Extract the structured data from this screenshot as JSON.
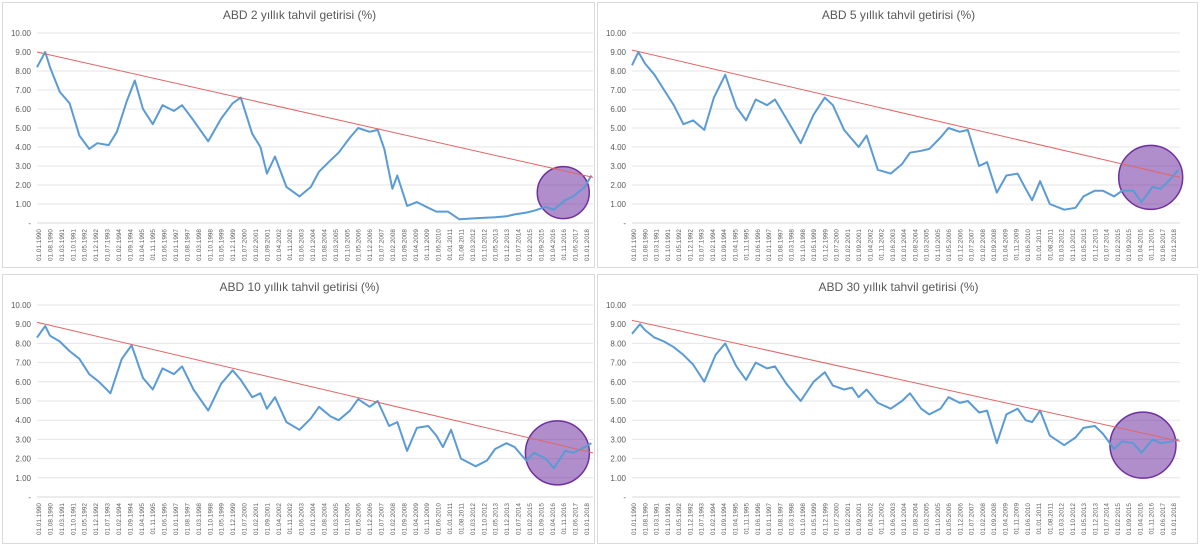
{
  "chart_data": [
    {
      "type": "line",
      "title": "ABD 2 yıllık tahvil getirisi (%)",
      "ylim": [
        0,
        10
      ],
      "yticks": [
        "-",
        "1.00",
        "2.00",
        "3.00",
        "4.00",
        "5.00",
        "6.00",
        "7.00",
        "8.00",
        "9.00",
        "10.00"
      ],
      "xticks": [
        "01.01.1990",
        "01.08.1990",
        "01.03.1991",
        "01.10.1991",
        "01.05.1992",
        "01.12.1992",
        "01.07.1993",
        "01.02.1994",
        "01.09.1994",
        "01.04.1995",
        "01.11.1995",
        "01.06.1996",
        "01.01.1997",
        "01.08.1997",
        "01.03.1998",
        "01.10.1998",
        "01.05.1999",
        "01.12.1999",
        "01.07.2000",
        "01.02.2001",
        "01.09.2001",
        "01.04.2002",
        "01.11.2002",
        "01.06.2003",
        "01.01.2004",
        "01.08.2004",
        "01.03.2005",
        "01.10.2005",
        "01.05.2006",
        "01.12.2006",
        "01.07.2007",
        "01.02.2008",
        "01.09.2008",
        "01.04.2009",
        "01.11.2009",
        "01.06.2010",
        "01.01.2011",
        "01.08.2011",
        "01.03.2012",
        "01.10.2012",
        "01.05.2013",
        "01.12.2013",
        "01.07.2014",
        "01.02.2015",
        "01.09.2015",
        "01.04.2016",
        "01.11.2016",
        "01.06.2017",
        "01.01.2018"
      ],
      "series": [
        {
          "values_x": [
            "1990-01",
            "1990-06",
            "1990-09",
            "1991-03",
            "1991-09",
            "1992-03",
            "1992-09",
            "1993-02",
            "1993-09",
            "1994-02",
            "1994-08",
            "1995-01",
            "1995-06",
            "1995-12",
            "1996-06",
            "1997-01",
            "1997-06",
            "1998-01",
            "1998-10",
            "1999-06",
            "2000-01",
            "2000-06",
            "2001-01",
            "2001-06",
            "2001-10",
            "2002-03",
            "2002-10",
            "2003-06",
            "2004-01",
            "2004-06",
            "2005-01",
            "2005-06",
            "2006-01",
            "2006-06",
            "2007-01",
            "2007-06",
            "2007-10",
            "2008-03",
            "2008-06",
            "2008-12",
            "2009-06",
            "2010-01",
            "2010-06",
            "2011-01",
            "2011-08",
            "2012-06",
            "2013-06",
            "2014-01",
            "2014-06",
            "2015-01",
            "2015-06",
            "2016-01",
            "2016-06",
            "2017-01",
            "2017-06",
            "2018-01",
            "2018-05"
          ],
          "values": [
            8.2,
            9.0,
            8.2,
            6.9,
            6.3,
            4.6,
            3.9,
            4.2,
            4.1,
            4.8,
            6.4,
            7.5,
            6.0,
            5.2,
            6.2,
            5.9,
            6.2,
            5.4,
            4.3,
            5.5,
            6.3,
            6.6,
            4.7,
            4.0,
            2.6,
            3.5,
            1.9,
            1.4,
            1.9,
            2.7,
            3.3,
            3.7,
            4.5,
            5.0,
            4.8,
            4.9,
            3.9,
            1.8,
            2.5,
            0.9,
            1.1,
            0.8,
            0.6,
            0.6,
            0.2,
            0.25,
            0.3,
            0.35,
            0.45,
            0.55,
            0.65,
            0.85,
            0.7,
            1.2,
            1.4,
            1.9,
            2.5
          ]
        },
        {
          "trend_start": 9.0,
          "trend_end": 2.4
        }
      ]
    },
    {
      "type": "line",
      "title": "ABD 5 yıllık tahvil getirisi (%)",
      "ylim": [
        0,
        10
      ],
      "yticks": [
        "-",
        "1.00",
        "2.00",
        "3.00",
        "4.00",
        "5.00",
        "6.00",
        "7.00",
        "8.00",
        "9.00",
        "10.00"
      ],
      "xticks": [
        "01.01.1990",
        "01.08.1990",
        "01.03.1991",
        "01.10.1991",
        "01.05.1992",
        "01.12.1992",
        "01.07.1993",
        "01.02.1994",
        "01.09.1994",
        "01.04.1995",
        "01.11.1995",
        "01.06.1996",
        "01.01.1997",
        "01.08.1997",
        "01.03.1998",
        "01.10.1998",
        "01.05.1999",
        "01.12.1999",
        "01.07.2000",
        "01.02.2001",
        "01.09.2001",
        "01.04.2002",
        "01.11.2002",
        "01.06.2003",
        "01.01.2004",
        "01.08.2004",
        "01.03.2005",
        "01.10.2005",
        "01.05.2006",
        "01.12.2006",
        "01.07.2007",
        "01.02.2008",
        "01.09.2008",
        "01.04.2009",
        "01.11.2009",
        "01.06.2010",
        "01.01.2011",
        "01.08.2011",
        "01.03.2012",
        "01.10.2012",
        "01.05.2013",
        "01.12.2013",
        "01.07.2014",
        "01.02.2015",
        "01.09.2015",
        "01.04.2016",
        "01.11.2016",
        "01.06.2017",
        "01.01.2018"
      ],
      "series": [
        {
          "values_x": [
            "1990-01",
            "1990-05",
            "1990-09",
            "1991-03",
            "1991-09",
            "1992-03",
            "1992-09",
            "1993-03",
            "1993-10",
            "1994-04",
            "1994-11",
            "1995-06",
            "1995-12",
            "1996-06",
            "1997-01",
            "1997-06",
            "1998-01",
            "1998-10",
            "1999-06",
            "2000-01",
            "2000-06",
            "2001-01",
            "2001-10",
            "2002-03",
            "2002-10",
            "2003-06",
            "2004-01",
            "2004-06",
            "2005-01",
            "2005-06",
            "2006-01",
            "2006-06",
            "2007-01",
            "2007-06",
            "2008-01",
            "2008-06",
            "2008-12",
            "2009-06",
            "2010-01",
            "2010-06",
            "2010-10",
            "2011-03",
            "2011-09",
            "2012-06",
            "2013-01",
            "2013-06",
            "2014-01",
            "2014-06",
            "2015-01",
            "2015-06",
            "2016-01",
            "2016-06",
            "2017-01",
            "2017-06",
            "2018-01",
            "2018-05"
          ],
          "values": [
            8.3,
            9.0,
            8.4,
            7.8,
            7.0,
            6.2,
            5.2,
            5.4,
            4.9,
            6.6,
            7.8,
            6.1,
            5.4,
            6.5,
            6.2,
            6.5,
            5.5,
            4.2,
            5.7,
            6.6,
            6.2,
            4.9,
            4.0,
            4.6,
            2.8,
            2.6,
            3.1,
            3.7,
            3.8,
            3.9,
            4.5,
            5.0,
            4.8,
            4.9,
            3.0,
            3.2,
            1.6,
            2.5,
            2.6,
            1.8,
            1.2,
            2.2,
            1.0,
            0.7,
            0.8,
            1.4,
            1.7,
            1.7,
            1.4,
            1.7,
            1.7,
            1.1,
            1.9,
            1.8,
            2.4,
            2.8
          ]
        },
        {
          "trend_start": 9.1,
          "trend_end": 2.4
        }
      ]
    },
    {
      "type": "line",
      "title": "ABD 10 yıllık tahvil getirisi (%)",
      "ylim": [
        0,
        10
      ],
      "yticks": [
        "-",
        "1.00",
        "2.00",
        "3.00",
        "4.00",
        "5.00",
        "6.00",
        "7.00",
        "8.00",
        "9.00",
        "10.00"
      ],
      "xticks": [
        "01.01.1990",
        "01.08.1990",
        "01.03.1991",
        "01.10.1991",
        "01.05.1992",
        "01.12.1992",
        "01.07.1993",
        "01.02.1994",
        "01.09.1994",
        "01.04.1995",
        "01.11.1995",
        "01.06.1996",
        "01.01.1997",
        "01.08.1997",
        "01.03.1998",
        "01.10.1998",
        "01.05.1999",
        "01.12.1999",
        "01.07.2000",
        "01.02.2001",
        "01.09.2001",
        "01.04.2002",
        "01.11.2002",
        "01.06.2003",
        "01.01.2004",
        "01.08.2004",
        "01.03.2005",
        "01.10.2005",
        "01.05.2006",
        "01.12.2006",
        "01.07.2007",
        "01.02.2008",
        "01.09.2008",
        "01.04.2009",
        "01.11.2009",
        "01.06.2010",
        "01.01.2011",
        "01.08.2011",
        "01.03.2012",
        "01.10.2012",
        "01.05.2013",
        "01.12.2013",
        "01.07.2014",
        "01.02.2015",
        "01.09.2015",
        "01.04.2016",
        "01.11.2016",
        "01.06.2017",
        "01.01.2018"
      ],
      "series": [
        {
          "values_x": [
            "1990-01",
            "1990-06",
            "1990-09",
            "1991-03",
            "1991-09",
            "1992-03",
            "1992-09",
            "1993-03",
            "1993-10",
            "1994-05",
            "1994-11",
            "1995-06",
            "1995-12",
            "1996-06",
            "1997-01",
            "1997-06",
            "1998-01",
            "1998-10",
            "1999-06",
            "2000-01",
            "2000-06",
            "2001-01",
            "2001-06",
            "2001-10",
            "2002-03",
            "2002-10",
            "2003-06",
            "2004-01",
            "2004-06",
            "2005-01",
            "2005-06",
            "2006-01",
            "2006-06",
            "2007-01",
            "2007-06",
            "2008-01",
            "2008-06",
            "2008-12",
            "2009-06",
            "2010-01",
            "2010-06",
            "2010-10",
            "2011-03",
            "2011-09",
            "2012-06",
            "2013-01",
            "2013-06",
            "2014-01",
            "2014-06",
            "2015-01",
            "2015-06",
            "2016-01",
            "2016-06",
            "2017-01",
            "2017-06",
            "2018-01",
            "2018-05"
          ],
          "values": [
            8.3,
            8.9,
            8.4,
            8.1,
            7.6,
            7.2,
            6.4,
            6.0,
            5.4,
            7.2,
            7.9,
            6.2,
            5.6,
            6.7,
            6.4,
            6.8,
            5.6,
            4.5,
            5.9,
            6.6,
            6.1,
            5.2,
            5.4,
            4.6,
            5.2,
            3.9,
            3.5,
            4.1,
            4.7,
            4.2,
            4.0,
            4.5,
            5.1,
            4.7,
            5.0,
            3.7,
            3.9,
            2.4,
            3.6,
            3.7,
            3.2,
            2.6,
            3.5,
            2.0,
            1.6,
            1.9,
            2.5,
            2.8,
            2.6,
            1.9,
            2.3,
            2.0,
            1.5,
            2.4,
            2.3,
            2.6,
            2.8
          ]
        },
        {
          "trend_start": 9.1,
          "trend_end": 2.3
        }
      ]
    },
    {
      "type": "line",
      "title": "ABD 30 yıllık tahvil getirisi (%)",
      "ylim": [
        0,
        10
      ],
      "yticks": [
        "-",
        "1.00",
        "2.00",
        "3.00",
        "4.00",
        "5.00",
        "6.00",
        "7.00",
        "8.00",
        "9.00",
        "10.00"
      ],
      "xticks": [
        "01.01.1990",
        "01.08.1990",
        "01.03.1991",
        "01.10.1991",
        "01.05.1992",
        "01.12.1992",
        "01.07.1993",
        "01.02.1994",
        "01.09.1994",
        "01.04.1995",
        "01.11.1995",
        "01.06.1996",
        "01.01.1997",
        "01.08.1997",
        "01.03.1998",
        "01.10.1998",
        "01.05.1999",
        "01.12.1999",
        "01.07.2000",
        "01.02.2001",
        "01.09.2001",
        "01.04.2002",
        "01.11.2002",
        "01.06.2003",
        "01.01.2004",
        "01.08.2004",
        "01.03.2005",
        "01.10.2005",
        "01.05.2006",
        "01.12.2006",
        "01.07.2007",
        "01.02.2008",
        "01.09.2008",
        "01.04.2009",
        "01.11.2009",
        "01.06.2010",
        "01.01.2011",
        "01.08.2011",
        "01.03.2012",
        "01.10.2012",
        "01.05.2013",
        "01.12.2013",
        "01.07.2014",
        "01.02.2015",
        "01.09.2015",
        "01.04.2016",
        "01.11.2016",
        "01.06.2017",
        "01.01.2018"
      ],
      "series": [
        {
          "values_x": [
            "1990-01",
            "1990-06",
            "1990-09",
            "1991-03",
            "1991-09",
            "1992-03",
            "1992-09",
            "1993-03",
            "1993-10",
            "1994-05",
            "1994-11",
            "1995-06",
            "1995-12",
            "1996-06",
            "1997-01",
            "1997-06",
            "1998-01",
            "1998-10",
            "1999-06",
            "2000-01",
            "2000-06",
            "2001-01",
            "2001-06",
            "2001-10",
            "2002-03",
            "2002-10",
            "2003-06",
            "2004-01",
            "2004-06",
            "2005-01",
            "2005-06",
            "2006-01",
            "2006-06",
            "2007-01",
            "2007-06",
            "2008-01",
            "2008-06",
            "2008-12",
            "2009-06",
            "2010-01",
            "2010-06",
            "2010-10",
            "2011-03",
            "2011-09",
            "2012-06",
            "2013-01",
            "2013-06",
            "2014-01",
            "2014-06",
            "2015-01",
            "2015-06",
            "2016-01",
            "2016-06",
            "2017-01",
            "2017-06",
            "2018-01",
            "2018-05"
          ],
          "values": [
            8.5,
            9.0,
            8.7,
            8.3,
            8.1,
            7.8,
            7.4,
            6.9,
            6.0,
            7.4,
            8.0,
            6.8,
            6.1,
            7.0,
            6.7,
            6.8,
            5.9,
            5.0,
            6.0,
            6.5,
            5.8,
            5.6,
            5.7,
            5.2,
            5.6,
            4.9,
            4.6,
            5.0,
            5.4,
            4.6,
            4.3,
            4.6,
            5.2,
            4.9,
            5.0,
            4.4,
            4.5,
            2.8,
            4.3,
            4.6,
            4.0,
            3.9,
            4.5,
            3.2,
            2.7,
            3.1,
            3.6,
            3.7,
            3.3,
            2.5,
            2.9,
            2.8,
            2.3,
            3.0,
            2.8,
            2.9,
            3.0
          ]
        },
        {
          "trend_start": 9.2,
          "trend_end": 2.9
        }
      ]
    }
  ],
  "colors": {
    "series": "#5b9bd5",
    "trend": "#e06666",
    "highlight_fill": "#7030a0",
    "highlight_stroke": "#7030a0"
  }
}
